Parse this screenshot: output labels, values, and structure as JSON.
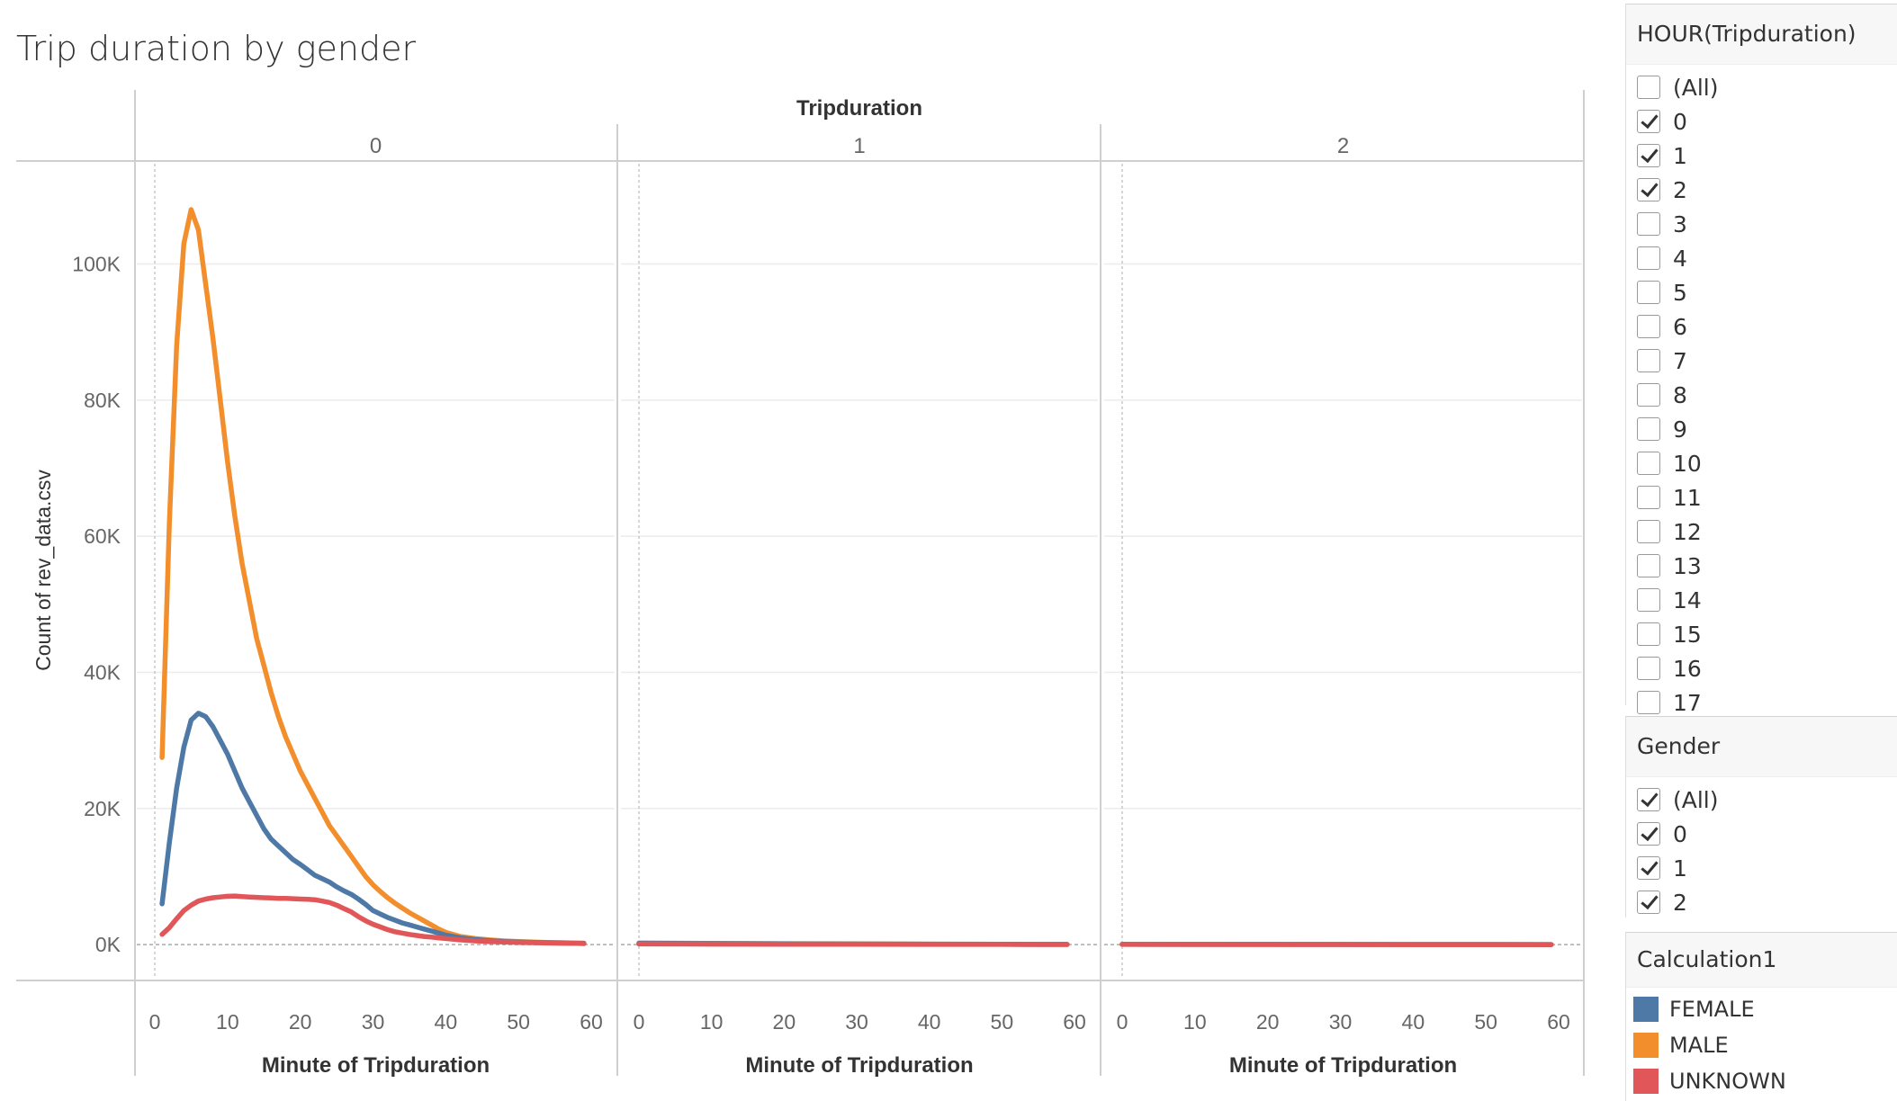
{
  "title": "Trip duration by gender",
  "chart_data": {
    "type": "line",
    "title": "Trip duration by gender",
    "column_header": "Tripduration",
    "panels": [
      "0",
      "1",
      "2"
    ],
    "xlabel": "Minute of Tripduration",
    "ylabel": "Count of rev_data.csv",
    "xlim": [
      0,
      60
    ],
    "ylim": [
      -5000,
      115000
    ],
    "x_ticks": [
      "0",
      "10",
      "20",
      "30",
      "40",
      "50",
      "60"
    ],
    "y_ticks": [
      {
        "v": 100000,
        "label": "100K"
      },
      {
        "v": 80000,
        "label": "80K"
      },
      {
        "v": 60000,
        "label": "60K"
      },
      {
        "v": 40000,
        "label": "40K"
      },
      {
        "v": 20000,
        "label": "20K"
      },
      {
        "v": 0,
        "label": "0K"
      }
    ],
    "grid": true,
    "series": [
      {
        "name": "MALE",
        "color": "#f28e2b",
        "panel_points": [
          [
            [
              1,
              27500
            ],
            [
              2,
              62000
            ],
            [
              3,
              88000
            ],
            [
              4,
              103000
            ],
            [
              5,
              108000
            ],
            [
              6,
              105000
            ],
            [
              7,
              97000
            ],
            [
              8,
              89000
            ],
            [
              9,
              80000
            ],
            [
              10,
              71000
            ],
            [
              11,
              63000
            ],
            [
              12,
              56000
            ],
            [
              13,
              50500
            ],
            [
              14,
              45000
            ],
            [
              15,
              41000
            ],
            [
              16,
              37000
            ],
            [
              17,
              33500
            ],
            [
              18,
              30500
            ],
            [
              19,
              28000
            ],
            [
              20,
              25500
            ],
            [
              21,
              23500
            ],
            [
              22,
              21500
            ],
            [
              23,
              19500
            ],
            [
              24,
              17500
            ],
            [
              25,
              16000
            ],
            [
              26,
              14500
            ],
            [
              27,
              13000
            ],
            [
              28,
              11500
            ],
            [
              29,
              10000
            ],
            [
              30,
              8800
            ],
            [
              31,
              7800
            ],
            [
              32,
              6900
            ],
            [
              33,
              6100
            ],
            [
              34,
              5400
            ],
            [
              35,
              4700
            ],
            [
              36,
              4100
            ],
            [
              37,
              3500
            ],
            [
              38,
              2900
            ],
            [
              39,
              2300
            ],
            [
              40,
              1800
            ],
            [
              42,
              1200
            ],
            [
              44,
              900
            ],
            [
              46,
              700
            ],
            [
              48,
              550
            ],
            [
              50,
              450
            ],
            [
              52,
              380
            ],
            [
              54,
              330
            ],
            [
              56,
              290
            ],
            [
              58,
              250
            ],
            [
              59,
              220
            ]
          ],
          [
            [
              0,
              250
            ],
            [
              10,
              180
            ],
            [
              20,
              140
            ],
            [
              30,
              110
            ],
            [
              40,
              80
            ],
            [
              50,
              60
            ],
            [
              59,
              40
            ]
          ],
          [
            [
              0,
              60
            ],
            [
              10,
              50
            ],
            [
              20,
              40
            ],
            [
              30,
              30
            ],
            [
              40,
              25
            ],
            [
              50,
              20
            ],
            [
              59,
              15
            ]
          ]
        ]
      },
      {
        "name": "FEMALE",
        "color": "#4e79a7",
        "panel_points": [
          [
            [
              1,
              6000
            ],
            [
              2,
              15000
            ],
            [
              3,
              23000
            ],
            [
              4,
              29000
            ],
            [
              5,
              33000
            ],
            [
              6,
              34000
            ],
            [
              7,
              33500
            ],
            [
              8,
              32000
            ],
            [
              9,
              30000
            ],
            [
              10,
              28000
            ],
            [
              11,
              25500
            ],
            [
              12,
              23000
            ],
            [
              13,
              21000
            ],
            [
              14,
              19000
            ],
            [
              15,
              17000
            ],
            [
              16,
              15500
            ],
            [
              17,
              14500
            ],
            [
              18,
              13500
            ],
            [
              19,
              12500
            ],
            [
              20,
              11800
            ],
            [
              21,
              11000
            ],
            [
              22,
              10200
            ],
            [
              23,
              9700
            ],
            [
              24,
              9200
            ],
            [
              25,
              8500
            ],
            [
              26,
              7900
            ],
            [
              27,
              7400
            ],
            [
              28,
              6700
            ],
            [
              29,
              5900
            ],
            [
              30,
              5000
            ],
            [
              31,
              4500
            ],
            [
              32,
              4000
            ],
            [
              33,
              3600
            ],
            [
              34,
              3200
            ],
            [
              35,
              2900
            ],
            [
              36,
              2600
            ],
            [
              37,
              2300
            ],
            [
              38,
              2000
            ],
            [
              39,
              1700
            ],
            [
              40,
              1400
            ],
            [
              42,
              1000
            ],
            [
              44,
              750
            ],
            [
              46,
              580
            ],
            [
              48,
              450
            ],
            [
              50,
              380
            ],
            [
              52,
              320
            ],
            [
              54,
              280
            ],
            [
              56,
              240
            ],
            [
              58,
              200
            ],
            [
              59,
              180
            ]
          ],
          [
            [
              0,
              200
            ],
            [
              10,
              150
            ],
            [
              20,
              120
            ],
            [
              30,
              90
            ],
            [
              40,
              70
            ],
            [
              50,
              50
            ],
            [
              59,
              30
            ]
          ],
          [
            [
              0,
              50
            ],
            [
              10,
              40
            ],
            [
              20,
              35
            ],
            [
              30,
              28
            ],
            [
              40,
              22
            ],
            [
              50,
              18
            ],
            [
              59,
              12
            ]
          ]
        ]
      },
      {
        "name": "UNKNOWN",
        "color": "#e15759",
        "panel_points": [
          [
            [
              1,
              1500
            ],
            [
              2,
              2500
            ],
            [
              3,
              3800
            ],
            [
              4,
              5000
            ],
            [
              5,
              5800
            ],
            [
              6,
              6400
            ],
            [
              7,
              6700
            ],
            [
              8,
              6900
            ],
            [
              9,
              7000
            ],
            [
              10,
              7100
            ],
            [
              11,
              7150
            ],
            [
              12,
              7050
            ],
            [
              13,
              7000
            ],
            [
              14,
              6950
            ],
            [
              15,
              6900
            ],
            [
              16,
              6850
            ],
            [
              17,
              6800
            ],
            [
              18,
              6800
            ],
            [
              19,
              6750
            ],
            [
              20,
              6700
            ],
            [
              21,
              6650
            ],
            [
              22,
              6600
            ],
            [
              23,
              6400
            ],
            [
              24,
              6200
            ],
            [
              25,
              5800
            ],
            [
              26,
              5300
            ],
            [
              27,
              4800
            ],
            [
              28,
              4100
            ],
            [
              29,
              3500
            ],
            [
              30,
              3000
            ],
            [
              31,
              2600
            ],
            [
              32,
              2200
            ],
            [
              33,
              1900
            ],
            [
              34,
              1700
            ],
            [
              35,
              1500
            ],
            [
              36,
              1350
            ],
            [
              37,
              1200
            ],
            [
              38,
              1100
            ],
            [
              39,
              1000
            ],
            [
              40,
              900
            ],
            [
              42,
              700
            ],
            [
              44,
              550
            ],
            [
              46,
              450
            ],
            [
              48,
              380
            ],
            [
              50,
              320
            ],
            [
              52,
              280
            ],
            [
              54,
              240
            ],
            [
              56,
              210
            ],
            [
              58,
              180
            ],
            [
              59,
              160
            ]
          ],
          [
            [
              0,
              100
            ],
            [
              10,
              80
            ],
            [
              20,
              60
            ],
            [
              30,
              50
            ],
            [
              40,
              40
            ],
            [
              50,
              30
            ],
            [
              59,
              20
            ]
          ],
          [
            [
              0,
              30
            ],
            [
              10,
              25
            ],
            [
              20,
              20
            ],
            [
              30,
              18
            ],
            [
              40,
              15
            ],
            [
              50,
              12
            ],
            [
              59,
              10
            ]
          ]
        ]
      }
    ]
  },
  "filters": {
    "hour": {
      "title": "HOUR(Tripduration)",
      "items": [
        {
          "label": "(All)",
          "checked": false
        },
        {
          "label": "0",
          "checked": true
        },
        {
          "label": "1",
          "checked": true
        },
        {
          "label": "2",
          "checked": true
        },
        {
          "label": "3",
          "checked": false
        },
        {
          "label": "4",
          "checked": false
        },
        {
          "label": "5",
          "checked": false
        },
        {
          "label": "6",
          "checked": false
        },
        {
          "label": "7",
          "checked": false
        },
        {
          "label": "8",
          "checked": false
        },
        {
          "label": "9",
          "checked": false
        },
        {
          "label": "10",
          "checked": false
        },
        {
          "label": "11",
          "checked": false
        },
        {
          "label": "12",
          "checked": false
        },
        {
          "label": "13",
          "checked": false
        },
        {
          "label": "14",
          "checked": false
        },
        {
          "label": "15",
          "checked": false
        },
        {
          "label": "16",
          "checked": false
        },
        {
          "label": "17",
          "checked": false
        }
      ]
    },
    "gender": {
      "title": "Gender",
      "items": [
        {
          "label": "(All)",
          "checked": true
        },
        {
          "label": "0",
          "checked": true
        },
        {
          "label": "1",
          "checked": true
        },
        {
          "label": "2",
          "checked": true
        }
      ]
    }
  },
  "legend": {
    "title": "Calculation1",
    "items": [
      {
        "label": "FEMALE",
        "color": "#4e79a7"
      },
      {
        "label": "MALE",
        "color": "#f28e2b"
      },
      {
        "label": "UNKNOWN",
        "color": "#e15759"
      }
    ]
  }
}
